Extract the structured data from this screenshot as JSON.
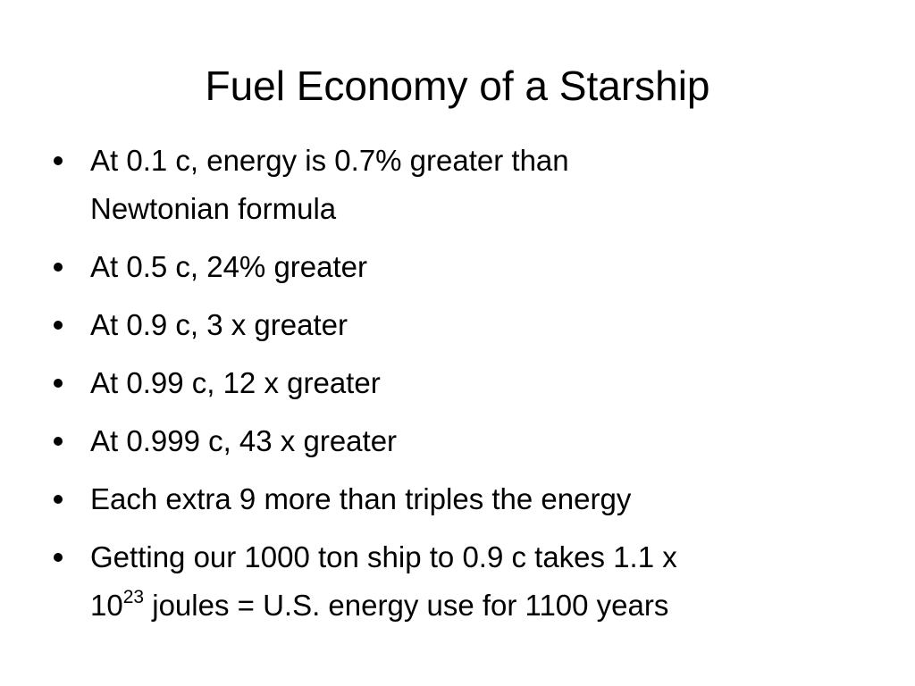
{
  "title": "Fuel Economy of a Starship",
  "bullets": [
    {
      "lines": [
        "At 0.1 c, energy is 0.7% greater than",
        "Newtonian formula"
      ]
    },
    {
      "lines": [
        "At 0.5 c, 24% greater"
      ]
    },
    {
      "lines": [
        "At 0.9 c, 3 x greater"
      ]
    },
    {
      "lines": [
        "At 0.99 c, 12 x greater"
      ]
    },
    {
      "lines": [
        "At 0.999 c, 43 x greater"
      ]
    },
    {
      "lines": [
        "Each extra 9 more than triples the energy"
      ]
    },
    {
      "lines": [
        "Getting our 1000 ton ship to 0.9 c takes 1.1 x",
        "10"
      ],
      "superscript": "23",
      "after": " joules = U.S. energy use for 1100 years"
    }
  ]
}
